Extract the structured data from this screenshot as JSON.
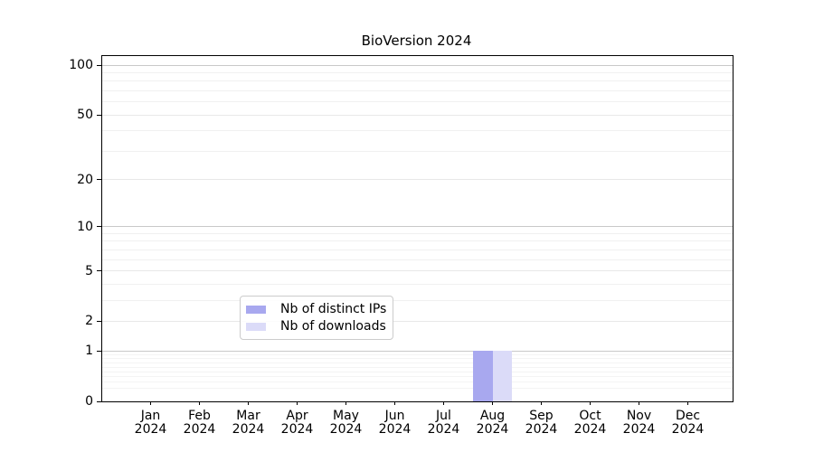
{
  "chart_data": {
    "type": "bar",
    "title": "BioVersion 2024",
    "categories": [
      "Jan 2024",
      "Feb 2024",
      "Mar 2024",
      "Apr 2024",
      "May 2024",
      "Jun 2024",
      "Jul 2024",
      "Aug 2024",
      "Sep 2024",
      "Oct 2024",
      "Nov 2024",
      "Dec 2024"
    ],
    "series": [
      {
        "name": "Nb of distinct IPs",
        "color": "#a8a8ef",
        "values": [
          0,
          0,
          0,
          0,
          0,
          0,
          0,
          1,
          0,
          0,
          0,
          0
        ]
      },
      {
        "name": "Nb of downloads",
        "color": "#dbdbf8",
        "values": [
          0,
          0,
          0,
          0,
          0,
          0,
          0,
          1,
          0,
          0,
          0,
          0
        ]
      }
    ],
    "xlabel": "",
    "ylabel": "",
    "y_ticks": [
      0,
      1,
      2,
      5,
      10,
      20,
      50,
      100
    ],
    "yscale": "log1p",
    "ylim": [
      0,
      113
    ],
    "grid": true,
    "legend_position": "lower center"
  }
}
